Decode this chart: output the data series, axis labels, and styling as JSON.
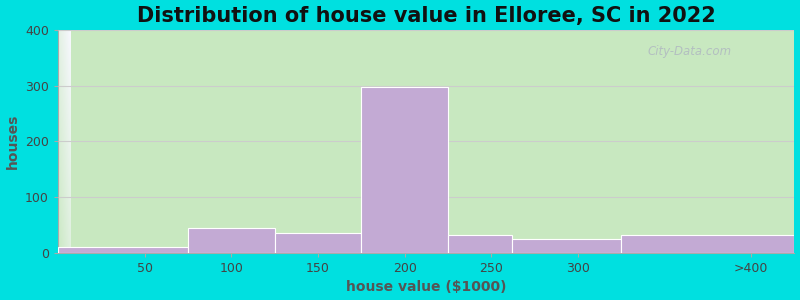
{
  "title": "Distribution of house value in Elloree, SC in 2022",
  "xlabel": "house value ($1000)",
  "ylabel": "houses",
  "bin_edges": [
    0,
    75,
    125,
    175,
    225,
    262,
    325,
    425
  ],
  "tick_positions": [
    50,
    100,
    150,
    200,
    250,
    300,
    400
  ],
  "tick_labels": [
    "50",
    "100",
    "150",
    "200",
    "250",
    "300",
    ">400"
  ],
  "values": [
    10,
    45,
    35,
    298,
    32,
    25,
    32
  ],
  "bar_color": "#c3aad4",
  "ylim": [
    0,
    400
  ],
  "yticks": [
    0,
    100,
    200,
    300,
    400
  ],
  "bg_green": "#c8e8c0",
  "bg_white": "#f0f0f8",
  "outer_bg": "#00e0e0",
  "grid_color": "#cccccc",
  "title_fontsize": 15,
  "axis_label_fontsize": 10,
  "tick_fontsize": 9,
  "watermark": "City-Data.com"
}
